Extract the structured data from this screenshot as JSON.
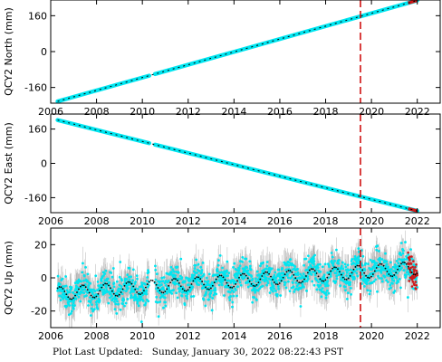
{
  "colors": {
    "cyan": "#00e5f0",
    "grey": "#b4b4b4",
    "black": "#000000",
    "red": "#d01818",
    "event": "#cc0000"
  },
  "footer": {
    "label": "Plot Last Updated:",
    "value": "Sunday, January 30, 2022 08:22:43 PST"
  },
  "chart_data": [
    {
      "type": "scatter",
      "ylabel": "QCY2 North (mm)",
      "xlim": [
        2006.0,
        2023.0
      ],
      "ylim": [
        -230,
        230
      ],
      "xticks": [
        2006,
        2008,
        2010,
        2012,
        2014,
        2016,
        2018,
        2020,
        2022
      ],
      "yticks": [
        -160,
        0,
        160
      ],
      "trend": {
        "x": [
          2006.3,
          2022.0
        ],
        "y": [
          -222,
          228
        ]
      },
      "event_line_x": 2019.52,
      "grid": false
    },
    {
      "type": "scatter",
      "ylabel": "QCY2 East (mm)",
      "xlim": [
        2006.0,
        2023.0
      ],
      "ylim": [
        -230,
        230
      ],
      "xticks": [
        2006,
        2008,
        2010,
        2012,
        2014,
        2016,
        2018,
        2020,
        2022
      ],
      "yticks": [
        -160,
        0,
        160
      ],
      "trend": {
        "x": [
          2006.3,
          2022.0
        ],
        "y": [
          202,
          -222
        ]
      },
      "event_line_x": 2019.52,
      "grid": false
    },
    {
      "type": "scatter",
      "ylabel": "QCY2 Up (mm)",
      "xlim": [
        2006.0,
        2023.0
      ],
      "ylim": [
        -30,
        30
      ],
      "xticks": [
        2006,
        2008,
        2010,
        2012,
        2014,
        2016,
        2018,
        2020,
        2022
      ],
      "yticks": [
        -20,
        0,
        20
      ],
      "trend": {
        "x": [
          2006.3,
          2022.0
        ],
        "y": [
          -9.5,
          6
        ]
      },
      "seasonal_amplitude_mm": 4,
      "scatter_sd_mm": 5,
      "event_line_x": 2019.52,
      "grid": false
    }
  ]
}
